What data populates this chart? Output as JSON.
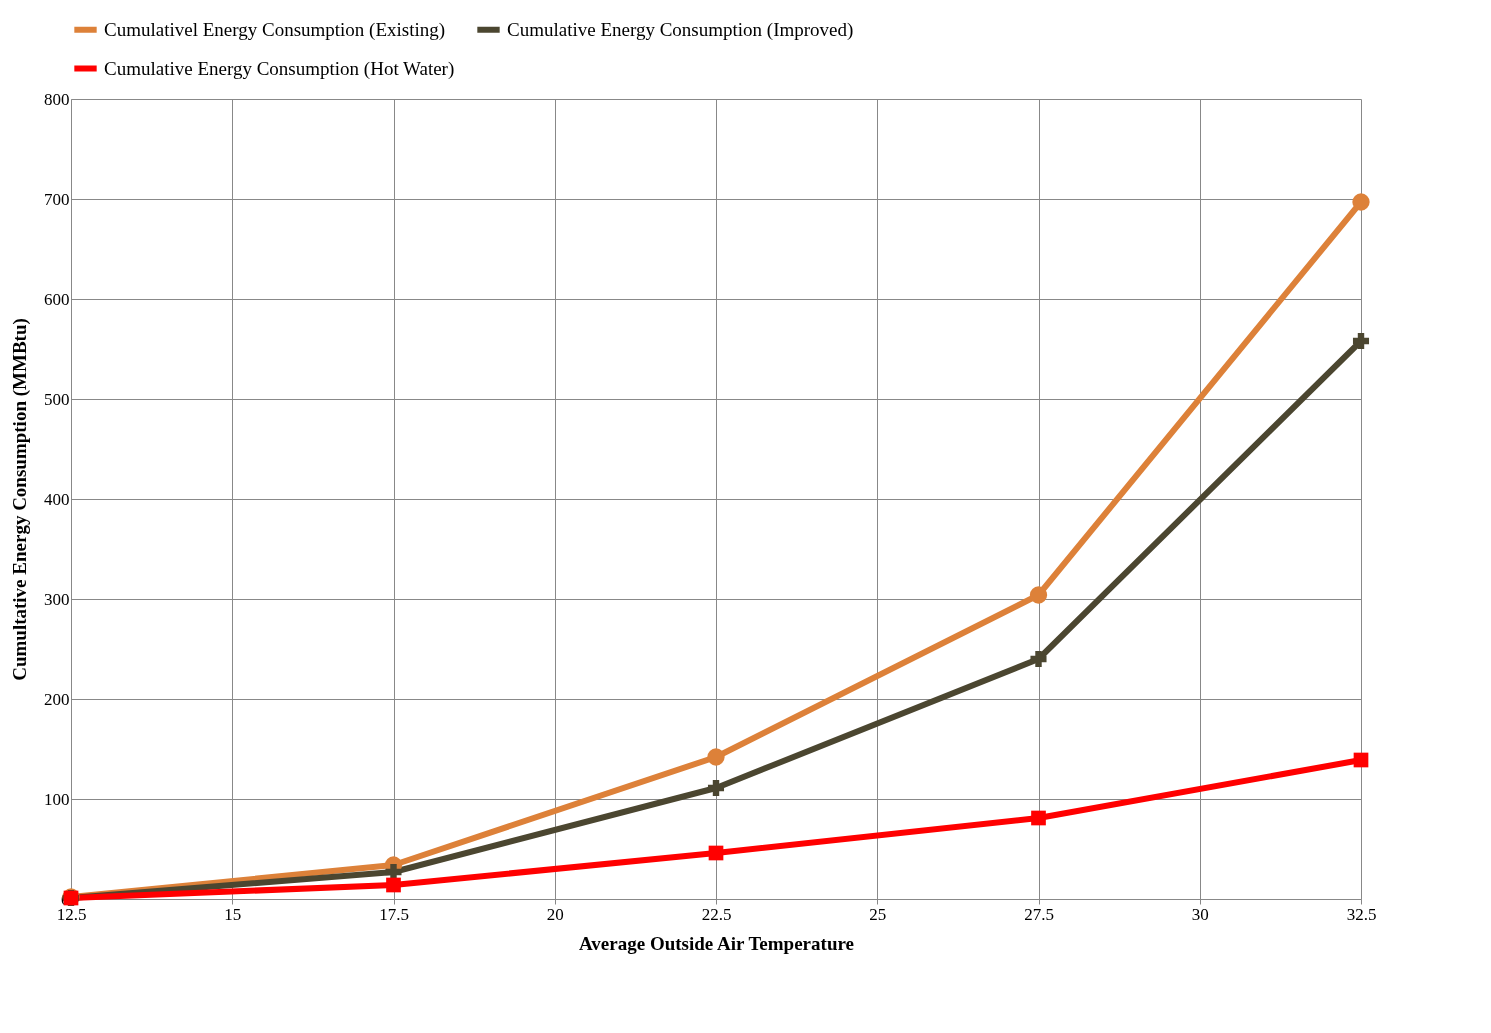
{
  "chart_data": {
    "type": "line",
    "xlabel": "Average Outside Air Temperature",
    "ylabel": "Cumultative Energy Consumption (MMBtu)",
    "x": [
      12.5,
      17.5,
      22.5,
      27.5,
      32.5
    ],
    "series": [
      {
        "name": "Cumulativel Energy Consumption (Existing)",
        "color": "#dd8139",
        "marker": "circle",
        "values": [
          2,
          34,
          142,
          304,
          697
        ]
      },
      {
        "name": "Cumulative Energy Consumption (Improved)",
        "color": "#4b4630",
        "marker": "cross",
        "values": [
          1,
          27,
          111,
          240,
          558
        ]
      },
      {
        "name": "Cumulative Energy Consumption (Hot Water)",
        "color": "#ff0000",
        "marker": "square",
        "values": [
          1,
          14,
          46,
          81,
          139
        ]
      }
    ],
    "xlim": [
      12.5,
      32.5
    ],
    "xticks": [
      12.5,
      15,
      17.5,
      20,
      22.5,
      25,
      27.5,
      30,
      32.5
    ],
    "ylim": [
      0,
      800
    ],
    "yticks": [
      0,
      100,
      200,
      300,
      400,
      500,
      600,
      700,
      800
    ],
    "grid": true,
    "legend": "top"
  }
}
